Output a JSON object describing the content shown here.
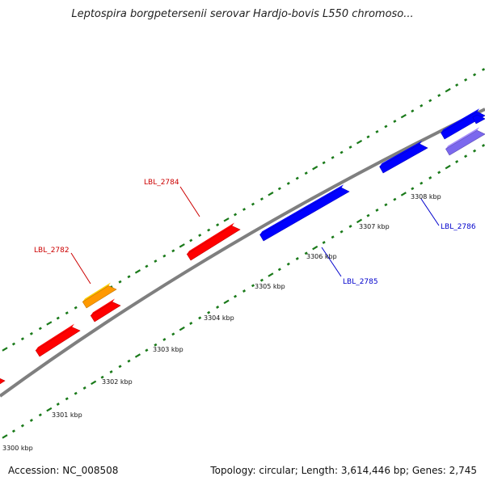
{
  "title": "Leptospira borgpetersenii serovar Hardjo-bovis L550 chromoso...",
  "footer": {
    "accession": "Accession: NC_008508",
    "summary": "Topology: circular; Length: 3,614,446 bp; Genes: 2,745"
  },
  "colors": {
    "backbone": "#7f7f7f",
    "forward_gene": "#ff0000",
    "reverse_gene": "#0000ff",
    "highlight_gene": "#ff9900",
    "rna_gene": "#7b68ee",
    "tick": "#1a7a1a",
    "forward_label": "#cc0000",
    "reverse_label": "#0000cc"
  },
  "scale": {
    "tick_labels": [
      "3300 kbp",
      "3301 kbp",
      "3302 kbp",
      "3303 kbp",
      "3304 kbp",
      "3305 kbp",
      "3306 kbp",
      "3307 kbp",
      "3308 kbp"
    ]
  },
  "genes": [
    {
      "name": "forward-gene-1",
      "strand": "forward",
      "type": "forward_gene"
    },
    {
      "name": "forward-gene-2",
      "strand": "forward",
      "type": "forward_gene"
    },
    {
      "name": "forward-gene-3",
      "strand": "forward",
      "type": "forward_gene"
    },
    {
      "name": "forward-gene-lbl-2782-orange",
      "strand": "forward",
      "type": "highlight_gene"
    },
    {
      "name": "forward-gene-lbl-2784",
      "strand": "forward",
      "type": "forward_gene"
    },
    {
      "name": "reverse-gene-lbl-2785-a",
      "strand": "reverse",
      "type": "reverse_gene"
    },
    {
      "name": "reverse-gene-lbl-2785-b",
      "strand": "reverse",
      "type": "reverse_gene"
    },
    {
      "name": "reverse-gene-lbl-2786",
      "strand": "reverse",
      "type": "reverse_gene"
    },
    {
      "name": "forward-gene-right-edge",
      "strand": "forward",
      "type": "reverse_gene"
    },
    {
      "name": "rna-gene-right-edge",
      "strand": "reverse",
      "type": "rna_gene"
    }
  ],
  "labels": [
    {
      "text": "LBL_2782",
      "strand": "forward"
    },
    {
      "text": "LBL_2784",
      "strand": "forward"
    },
    {
      "text": "LBL_2785",
      "strand": "reverse"
    },
    {
      "text": "LBL_2786",
      "strand": "reverse"
    }
  ]
}
